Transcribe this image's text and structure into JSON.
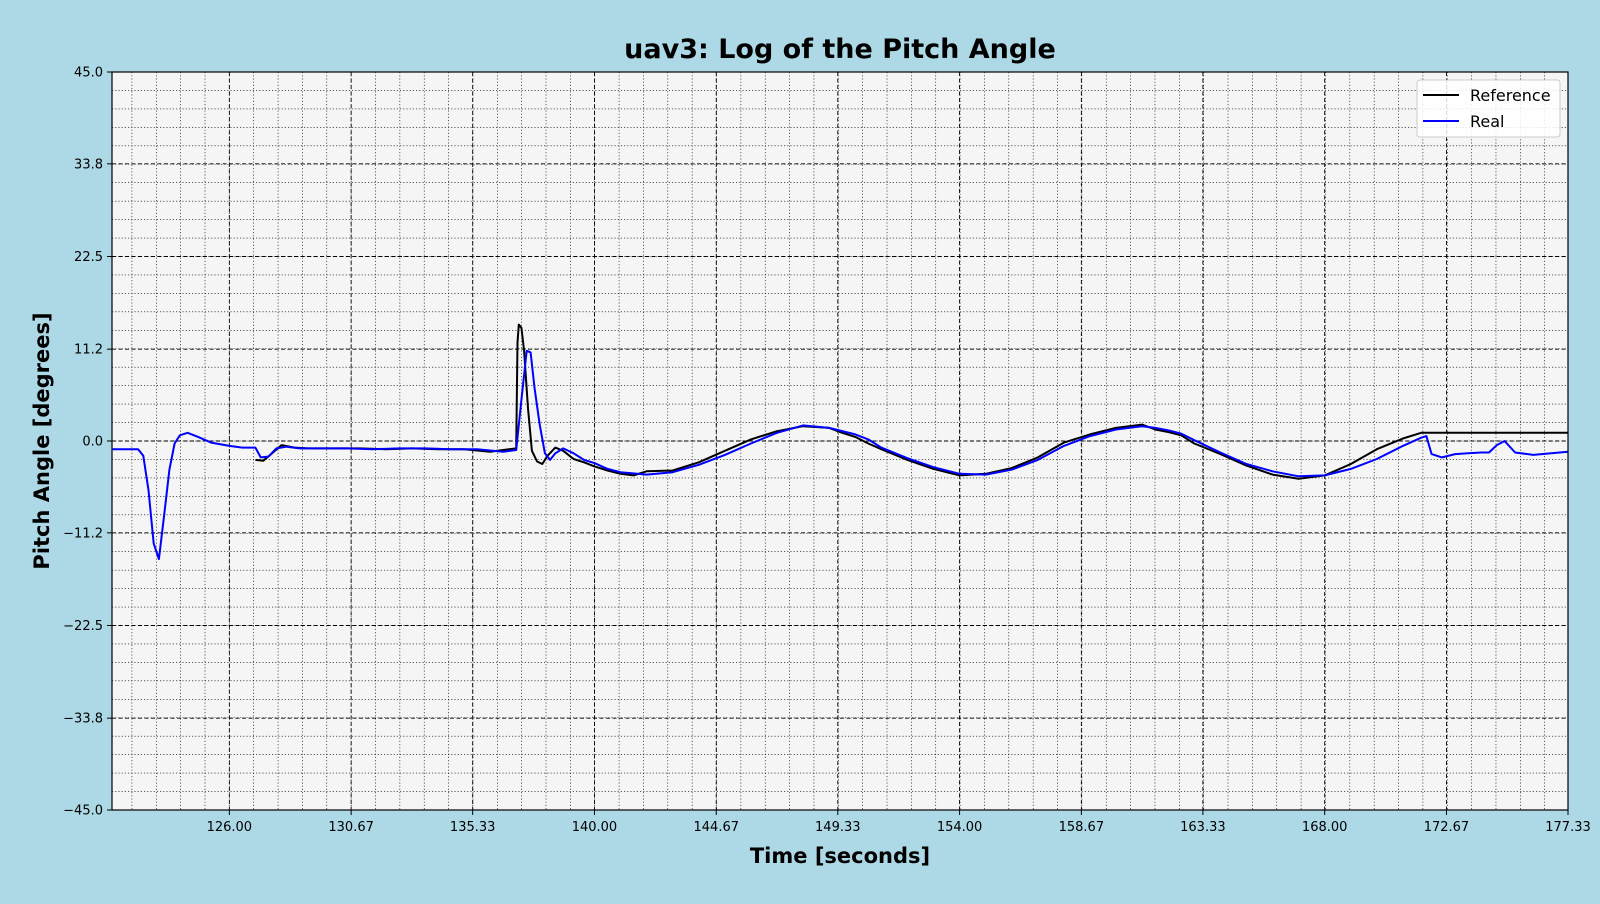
{
  "chart_data": {
    "type": "line",
    "title": "uav3: Log of the Pitch Angle",
    "xlabel": "Time [seconds]",
    "ylabel": "Pitch Angle [degrees]",
    "xlim": [
      121.5,
      177.33
    ],
    "ylim": [
      -45.0,
      45.0
    ],
    "x_ticks": [
      126.0,
      130.67,
      135.33,
      140.0,
      144.67,
      149.33,
      154.0,
      158.67,
      163.33,
      168.0,
      172.67,
      177.33
    ],
    "x_tick_labels": [
      "126.00",
      "130.67",
      "135.33",
      "140.00",
      "144.67",
      "149.33",
      "154.00",
      "158.67",
      "163.33",
      "168.00",
      "172.67",
      "177.33"
    ],
    "y_ticks": [
      -45.0,
      -33.8,
      -22.5,
      -11.2,
      0.0,
      11.2,
      22.5,
      33.8,
      45.0
    ],
    "y_tick_labels": [
      "−45.0",
      "−33.8",
      "−22.5",
      "−11.2",
      "0.0",
      "11.2",
      "22.5",
      "33.8",
      "45.0"
    ],
    "grid": true,
    "legend_position": "top-right",
    "series": [
      {
        "name": "Reference",
        "color": "#000000",
        "x": [
          127.0,
          127.3,
          127.6,
          128.0,
          128.5,
          129.0,
          130.0,
          131.0,
          132.0,
          133.0,
          134.0,
          135.0,
          136.0,
          136.5,
          137.0,
          137.05,
          137.1,
          137.2,
          137.3,
          137.45,
          137.6,
          137.8,
          138.0,
          138.2,
          138.5,
          138.8,
          139.2,
          139.6,
          140.0,
          140.5,
          141.0,
          141.5,
          142.0,
          143.0,
          144.0,
          145.0,
          146.0,
          147.0,
          148.0,
          149.0,
          149.5,
          150.0,
          150.5,
          151.0,
          152.0,
          153.0,
          154.0,
          155.0,
          156.0,
          157.0,
          158.0,
          159.0,
          160.0,
          161.0,
          161.5,
          162.0,
          162.5,
          163.0,
          164.0,
          165.0,
          166.0,
          167.0,
          168.0,
          169.0,
          170.0,
          171.0,
          171.7,
          172.0,
          173.0,
          174.0,
          175.0,
          176.0,
          177.33
        ],
        "y": [
          -2.3,
          -2.4,
          -1.6,
          -0.5,
          -0.8,
          -0.9,
          -0.9,
          -0.9,
          -1.0,
          -0.9,
          -1.0,
          -1.0,
          -1.3,
          -1.1,
          -0.9,
          12.0,
          14.2,
          13.8,
          11.0,
          4.0,
          -1.2,
          -2.5,
          -2.8,
          -1.8,
          -0.8,
          -1.2,
          -2.2,
          -2.6,
          -3.1,
          -3.6,
          -4.0,
          -4.2,
          -3.7,
          -3.6,
          -2.6,
          -1.2,
          0.2,
          1.2,
          1.8,
          1.6,
          1.0,
          0.5,
          -0.3,
          -1.0,
          -2.3,
          -3.4,
          -4.2,
          -4.0,
          -3.3,
          -2.0,
          -0.2,
          0.8,
          1.6,
          2.0,
          1.4,
          1.1,
          0.7,
          -0.3,
          -1.6,
          -3.0,
          -4.1,
          -4.6,
          -4.2,
          -2.8,
          -1.0,
          0.3,
          1.0,
          1.0,
          1.0,
          1.0,
          1.0,
          1.0,
          1.0
        ]
      },
      {
        "name": "Real",
        "color": "#0000ff",
        "x": [
          121.5,
          122.5,
          122.7,
          122.9,
          123.1,
          123.3,
          123.5,
          123.7,
          123.9,
          124.1,
          124.4,
          124.8,
          125.3,
          126.0,
          126.5,
          127.0,
          127.2,
          127.5,
          127.8,
          128.2,
          128.7,
          129.5,
          130.5,
          131.5,
          132.5,
          133.5,
          134.5,
          135.5,
          136.5,
          137.0,
          137.2,
          137.4,
          137.55,
          137.7,
          137.9,
          138.1,
          138.3,
          138.5,
          138.8,
          139.2,
          139.6,
          140.0,
          140.5,
          141.0,
          142.0,
          143.0,
          144.0,
          145.0,
          146.0,
          147.0,
          148.0,
          149.0,
          150.0,
          150.5,
          151.0,
          152.0,
          153.0,
          154.0,
          155.0,
          156.0,
          157.0,
          158.0,
          159.0,
          160.0,
          161.0,
          161.5,
          162.0,
          162.5,
          163.0,
          164.0,
          165.0,
          166.0,
          167.0,
          168.0,
          169.0,
          170.0,
          171.0,
          171.7,
          171.9,
          172.1,
          172.5,
          173.0,
          173.5,
          174.0,
          174.3,
          174.6,
          174.9,
          175.3,
          176.0,
          177.33
        ],
        "y": [
          -1.0,
          -1.0,
          -1.8,
          -6.0,
          -12.5,
          -14.4,
          -9.0,
          -3.5,
          -0.3,
          0.7,
          1.0,
          0.5,
          -0.2,
          -0.6,
          -0.8,
          -0.8,
          -2.0,
          -1.9,
          -0.9,
          -0.7,
          -0.9,
          -0.9,
          -0.9,
          -1.0,
          -0.9,
          -0.9,
          -1.0,
          -1.0,
          -1.3,
          -1.1,
          5.0,
          11.0,
          10.8,
          6.5,
          2.0,
          -1.5,
          -2.3,
          -1.5,
          -0.9,
          -1.5,
          -2.3,
          -2.7,
          -3.4,
          -3.8,
          -4.1,
          -3.8,
          -2.9,
          -1.7,
          -0.3,
          1.0,
          1.9,
          1.6,
          0.8,
          0.2,
          -0.8,
          -2.1,
          -3.2,
          -4.0,
          -4.1,
          -3.5,
          -2.3,
          -0.6,
          0.6,
          1.4,
          1.8,
          1.6,
          1.3,
          0.9,
          0.1,
          -1.4,
          -2.8,
          -3.7,
          -4.3,
          -4.2,
          -3.4,
          -2.2,
          -0.6,
          0.4,
          0.6,
          -1.6,
          -2.0,
          -1.6,
          -1.5,
          -1.4,
          -1.4,
          -0.5,
          0.0,
          -1.4,
          -1.7,
          -1.3
        ]
      }
    ]
  }
}
